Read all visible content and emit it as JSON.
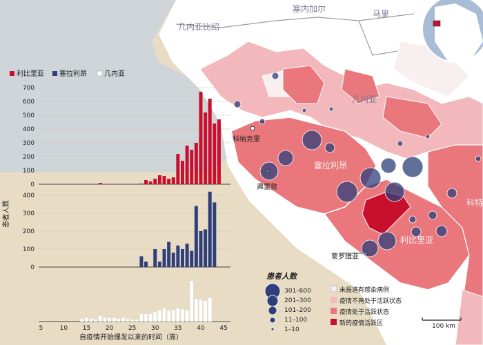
{
  "map": {
    "countries": {
      "guinea_bissau": "几内亚比绍",
      "senegal": "塞内加尔",
      "mali": "马里",
      "guinea": "几内亚",
      "sierra_leone": "塞拉利昂",
      "liberia": "利比里亚",
      "ivory_coast_partial": "科特"
    },
    "cities": {
      "conakry": "科纳克里",
      "freetown": "弗里敦",
      "monrovia": "蒙罗维亚"
    },
    "scale_label": "100 km",
    "colors": {
      "no_cases": "#f3eeee",
      "inactive": "#f2b8bc",
      "active": "#ea777b",
      "new_active": "#c8102e",
      "bubble": "#2f3f7a",
      "land_other": "#ffffff",
      "bg": "#e8dcc4",
      "ocean": "#c2cbd4"
    }
  },
  "legend": {
    "title": "患者人数",
    "bubbles": [
      "301–600",
      "201–300",
      "101–200",
      "11–100",
      "1–10"
    ],
    "status": [
      "未报道有感染病例",
      "疫情不再处于活跃状态",
      "疫情处于活跃状态",
      "新的疫情活跃区"
    ]
  },
  "chart_data": {
    "type": "bar",
    "series_labels": [
      "利比里亚",
      "塞拉利昂",
      "几内亚"
    ],
    "ylabel": "患者人数",
    "xlabel": "自疫情开始爆发以来的时间（周）",
    "x_ticks": [
      5,
      10,
      15,
      20,
      25,
      30,
      35,
      40,
      45
    ],
    "ylim": [
      0,
      700
    ],
    "y_ticks": [
      0,
      100,
      200,
      300,
      400,
      500,
      600,
      700
    ],
    "y_ticks_lower": [
      0,
      100,
      200,
      300,
      400
    ],
    "weeks": [
      14,
      15,
      16,
      17,
      18,
      19,
      20,
      21,
      22,
      23,
      24,
      25,
      26,
      27,
      28,
      29,
      30,
      31,
      32,
      33,
      34,
      35,
      36,
      37,
      38,
      39,
      40,
      41,
      42,
      43,
      44,
      45
    ],
    "series": [
      {
        "name": "利比里亚",
        "color": "#c8102e",
        "values": [
          0,
          0,
          0,
          0,
          10,
          0,
          0,
          0,
          0,
          0,
          0,
          0,
          0,
          5,
          30,
          20,
          40,
          65,
          60,
          40,
          50,
          220,
          170,
          280,
          250,
          300,
          670,
          520,
          620,
          440,
          470,
          0
        ]
      },
      {
        "name": "塞拉利昂",
        "color": "#2f3f7a",
        "values": [
          0,
          0,
          0,
          0,
          0,
          0,
          0,
          0,
          0,
          0,
          0,
          0,
          0,
          60,
          30,
          0,
          100,
          30,
          100,
          140,
          80,
          120,
          100,
          130,
          90,
          340,
          200,
          210,
          420,
          360,
          0,
          0
        ]
      },
      {
        "name": "几内亚",
        "color": "#ffffff",
        "values": [
          15,
          20,
          15,
          10,
          30,
          20,
          20,
          20,
          15,
          20,
          15,
          10,
          10,
          40,
          40,
          40,
          50,
          60,
          70,
          60,
          60,
          70,
          65,
          60,
          215,
          120,
          115,
          110,
          125,
          0,
          0,
          0
        ]
      }
    ]
  }
}
